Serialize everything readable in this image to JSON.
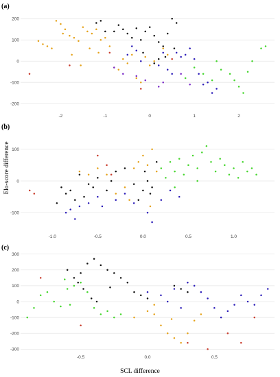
{
  "figure": {
    "ylabel": "Elo-score difference",
    "xlabel": "SCL difference"
  },
  "colors": {
    "black": "#111111",
    "orange": "#E5A21A",
    "blue": "#2A1BB8",
    "purple": "#7A2AC8",
    "green": "#44D62C",
    "red": "#C83A2A",
    "grid": "#E6E6E6"
  },
  "chart_data": [
    {
      "type": "scatter",
      "label": "(a)",
      "grid": true,
      "xlim": [
        -2.9,
        2.8
      ],
      "ylim": [
        -235,
        230
      ],
      "xticks": [
        -2,
        -1,
        0,
        1,
        2
      ],
      "yticks": [
        -200,
        -100,
        0,
        100,
        200
      ],
      "series": [
        {
          "color": "orange",
          "points": [
            [
              -2.5,
              95
            ],
            [
              -2.4,
              80
            ],
            [
              -2.3,
              70
            ],
            [
              -2.1,
              190
            ],
            [
              -2.0,
              175
            ],
            [
              -1.9,
              150
            ],
            [
              -1.8,
              120
            ],
            [
              -1.7,
              110
            ],
            [
              -1.6,
              95
            ],
            [
              -1.5,
              160
            ],
            [
              -1.4,
              140
            ],
            [
              -1.3,
              130
            ],
            [
              -1.2,
              150
            ],
            [
              -1.1,
              100
            ],
            [
              -1.0,
              110
            ],
            [
              -0.9,
              70
            ],
            [
              -0.8,
              -30
            ],
            [
              -0.7,
              -40
            ],
            [
              -0.6,
              10
            ],
            [
              -0.5,
              -10
            ],
            [
              -0.4,
              30
            ],
            [
              -0.3,
              -80
            ],
            [
              -0.2,
              -100
            ],
            [
              -0.1,
              20
            ],
            [
              0.0,
              -20
            ],
            [
              0.1,
              0
            ],
            [
              0.3,
              60
            ],
            [
              0.4,
              30
            ],
            [
              -2.2,
              60
            ],
            [
              -1.95,
              130
            ],
            [
              -1.75,
              30
            ],
            [
              -1.55,
              -20
            ],
            [
              -1.35,
              60
            ],
            [
              -1.15,
              40
            ]
          ]
        },
        {
          "color": "black",
          "points": [
            [
              -0.8,
              140
            ],
            [
              -0.7,
              170
            ],
            [
              -0.6,
              150
            ],
            [
              -0.5,
              130
            ],
            [
              -0.4,
              110
            ],
            [
              -0.3,
              155
            ],
            [
              -0.2,
              100
            ],
            [
              -0.1,
              140
            ],
            [
              0.0,
              160
            ],
            [
              0.1,
              120
            ],
            [
              0.2,
              90
            ],
            [
              0.3,
              70
            ],
            [
              0.4,
              130
            ],
            [
              0.5,
              200
            ],
            [
              0.6,
              180
            ],
            [
              0.2,
              10
            ],
            [
              0.1,
              -10
            ],
            [
              -1.2,
              180
            ],
            [
              -1.1,
              190
            ],
            [
              -1.0,
              140
            ],
            [
              0.55,
              60
            ],
            [
              0.35,
              20
            ],
            [
              -0.15,
              40
            ]
          ]
        },
        {
          "color": "blue",
          "points": [
            [
              -0.5,
              30
            ],
            [
              -0.4,
              70
            ],
            [
              -0.3,
              50
            ],
            [
              -0.2,
              0
            ],
            [
              0.2,
              -20
            ],
            [
              0.4,
              -40
            ],
            [
              0.5,
              -60
            ],
            [
              0.6,
              40
            ],
            [
              0.7,
              20
            ],
            [
              0.8,
              30
            ],
            [
              0.9,
              60
            ],
            [
              1.0,
              10
            ],
            [
              1.1,
              -60
            ],
            [
              1.2,
              -110
            ],
            [
              1.3,
              -100
            ],
            [
              1.4,
              -150
            ],
            [
              1.5,
              -130
            ],
            [
              0.3,
              40
            ]
          ]
        },
        {
          "color": "purple",
          "points": [
            [
              -0.8,
              -30
            ],
            [
              -0.6,
              -60
            ],
            [
              -0.3,
              -70
            ],
            [
              -0.1,
              -90
            ],
            [
              0.2,
              -120
            ],
            [
              0.3,
              -100
            ],
            [
              0.7,
              -60
            ],
            [
              0.9,
              -110
            ]
          ]
        },
        {
          "color": "green",
          "points": [
            [
              0.8,
              -80
            ],
            [
              1.0,
              -30
            ],
            [
              1.2,
              -60
            ],
            [
              1.4,
              -90
            ],
            [
              1.6,
              -40
            ],
            [
              1.8,
              -60
            ],
            [
              2.0,
              -120
            ],
            [
              2.1,
              -150
            ],
            [
              2.3,
              0
            ],
            [
              2.5,
              60
            ],
            [
              2.6,
              70
            ],
            [
              1.5,
              0
            ],
            [
              1.9,
              -90
            ],
            [
              2.2,
              -50
            ]
          ]
        },
        {
          "color": "red",
          "points": [
            [
              -2.7,
              -60
            ],
            [
              -1.8,
              -20
            ],
            [
              -0.9,
              40
            ],
            [
              -0.2,
              -130
            ],
            [
              0.5,
              10
            ]
          ]
        }
      ]
    },
    {
      "type": "scatter",
      "label": "(b)",
      "grid": true,
      "xlim": [
        -1.35,
        1.45
      ],
      "ylim": [
        -160,
        160
      ],
      "xticks": [
        -1.0,
        -0.5,
        0.0,
        0.5,
        1.0
      ],
      "yticks": [
        -100,
        0,
        100
      ],
      "series": [
        {
          "color": "black",
          "points": [
            [
              -0.9,
              -20
            ],
            [
              -0.85,
              -40
            ],
            [
              -0.8,
              -30
            ],
            [
              -0.75,
              -60
            ],
            [
              -0.7,
              20
            ],
            [
              -0.6,
              -10
            ],
            [
              -0.55,
              -20
            ],
            [
              -0.5,
              10
            ],
            [
              -0.4,
              -30
            ],
            [
              -0.3,
              30
            ],
            [
              -0.2,
              40
            ],
            [
              -0.1,
              -10
            ],
            [
              0.0,
              -30
            ],
            [
              0.05,
              0
            ],
            [
              0.1,
              -20
            ],
            [
              0.08,
              -40
            ],
            [
              0.15,
              60
            ],
            [
              -0.95,
              -70
            ],
            [
              -0.65,
              -50
            ],
            [
              -0.35,
              0
            ],
            [
              0.02,
              30
            ],
            [
              -0.05,
              -60
            ]
          ]
        },
        {
          "color": "orange",
          "points": [
            [
              -0.7,
              30
            ],
            [
              -0.6,
              20
            ],
            [
              -0.5,
              40
            ],
            [
              -0.4,
              20
            ],
            [
              -0.3,
              -40
            ],
            [
              -0.2,
              -20
            ],
            [
              -0.1,
              40
            ],
            [
              -0.05,
              60
            ],
            [
              0.0,
              80
            ],
            [
              0.05,
              50
            ],
            [
              0.1,
              100
            ],
            [
              0.15,
              30
            ],
            [
              -0.15,
              -60
            ],
            [
              0.08,
              -80
            ]
          ]
        },
        {
          "color": "blue",
          "points": [
            [
              -0.85,
              -100
            ],
            [
              -0.8,
              -90
            ],
            [
              -0.75,
              -120
            ],
            [
              -0.7,
              -80
            ],
            [
              -0.6,
              -70
            ],
            [
              -0.5,
              -50
            ],
            [
              -0.45,
              -80
            ],
            [
              -0.3,
              -60
            ],
            [
              -0.2,
              -40
            ],
            [
              -0.1,
              -70
            ],
            [
              0.05,
              -100
            ],
            [
              0.1,
              -130
            ],
            [
              0.2,
              -60
            ],
            [
              0.3,
              -30
            ],
            [
              0.4,
              -50
            ]
          ]
        },
        {
          "color": "green",
          "points": [
            [
              0.2,
              40
            ],
            [
              0.25,
              10
            ],
            [
              0.3,
              60
            ],
            [
              0.35,
              30
            ],
            [
              0.4,
              70
            ],
            [
              0.45,
              20
            ],
            [
              0.5,
              50
            ],
            [
              0.55,
              80
            ],
            [
              0.6,
              40
            ],
            [
              0.65,
              90
            ],
            [
              0.7,
              110
            ],
            [
              0.75,
              60
            ],
            [
              0.8,
              30
            ],
            [
              0.85,
              70
            ],
            [
              0.9,
              50
            ],
            [
              0.95,
              20
            ],
            [
              1.0,
              40
            ],
            [
              1.05,
              10
            ],
            [
              1.1,
              60
            ],
            [
              1.15,
              30
            ],
            [
              1.2,
              40
            ],
            [
              1.25,
              20
            ],
            [
              0.35,
              -20
            ],
            [
              0.6,
              0
            ]
          ]
        },
        {
          "color": "red",
          "points": [
            [
              -1.25,
              -30
            ],
            [
              -1.2,
              -40
            ],
            [
              -0.5,
              80
            ],
            [
              -0.4,
              50
            ],
            [
              -0.35,
              20
            ]
          ]
        }
      ]
    },
    {
      "type": "scatter",
      "label": "(c)",
      "grid": true,
      "xlim": [
        -0.95,
        0.95
      ],
      "ylim": [
        -320,
        320
      ],
      "xticks": [
        -0.5,
        0.0,
        0.5
      ],
      "yticks": [
        -300,
        -200,
        -100,
        0,
        100,
        200,
        300
      ],
      "series": [
        {
          "color": "black",
          "points": [
            [
              -0.6,
              200
            ],
            [
              -0.55,
              150
            ],
            [
              -0.5,
              180
            ],
            [
              -0.45,
              240
            ],
            [
              -0.4,
              270
            ],
            [
              -0.35,
              230
            ],
            [
              -0.3,
              200
            ],
            [
              -0.25,
              180
            ],
            [
              -0.2,
              150
            ],
            [
              -0.15,
              120
            ],
            [
              -0.1,
              60
            ],
            [
              -0.05,
              40
            ],
            [
              0.0,
              20
            ],
            [
              0.2,
              100
            ],
            [
              0.25,
              80
            ],
            [
              0.3,
              60
            ],
            [
              -0.52,
              120
            ],
            [
              -0.48,
              80
            ],
            [
              -0.42,
              20
            ],
            [
              -0.38,
              0
            ],
            [
              -0.28,
              90
            ]
          ]
        },
        {
          "color": "green",
          "points": [
            [
              -0.9,
              -100
            ],
            [
              -0.85,
              -40
            ],
            [
              -0.8,
              40
            ],
            [
              -0.75,
              60
            ],
            [
              -0.7,
              0
            ],
            [
              -0.65,
              -30
            ],
            [
              -0.6,
              80
            ],
            [
              -0.55,
              100
            ],
            [
              -0.5,
              120
            ],
            [
              -0.45,
              60
            ],
            [
              -0.4,
              -40
            ],
            [
              -0.35,
              -80
            ],
            [
              -0.3,
              -60
            ],
            [
              -0.25,
              -100
            ],
            [
              -0.2,
              -80
            ],
            [
              -0.62,
              140
            ],
            [
              -0.58,
              -20
            ]
          ]
        },
        {
          "color": "blue",
          "points": [
            [
              0.0,
              60
            ],
            [
              0.1,
              40
            ],
            [
              0.2,
              80
            ],
            [
              0.3,
              120
            ],
            [
              0.35,
              100
            ],
            [
              0.4,
              60
            ],
            [
              0.45,
              20
            ],
            [
              0.5,
              -40
            ],
            [
              0.55,
              -100
            ],
            [
              0.6,
              -60
            ],
            [
              0.65,
              -20
            ],
            [
              0.7,
              40
            ],
            [
              0.75,
              0
            ],
            [
              0.8,
              -20
            ],
            [
              0.85,
              40
            ],
            [
              0.9,
              80
            ],
            [
              0.25,
              -40
            ],
            [
              0.15,
              0
            ]
          ]
        },
        {
          "color": "orange",
          "points": [
            [
              -0.1,
              -100
            ],
            [
              0.0,
              -60
            ],
            [
              0.05,
              -80
            ],
            [
              0.1,
              -150
            ],
            [
              0.15,
              -200
            ],
            [
              0.2,
              -230
            ],
            [
              0.25,
              -260
            ],
            [
              0.3,
              -200
            ],
            [
              0.35,
              -120
            ],
            [
              0.4,
              -80
            ],
            [
              0.05,
              -20
            ],
            [
              0.18,
              -110
            ]
          ]
        },
        {
          "color": "red",
          "points": [
            [
              -0.8,
              150
            ],
            [
              -0.5,
              -150
            ],
            [
              0.3,
              -260
            ],
            [
              0.45,
              -300
            ],
            [
              0.6,
              -200
            ],
            [
              0.7,
              -260
            ],
            [
              0.8,
              -100
            ]
          ]
        }
      ]
    }
  ]
}
